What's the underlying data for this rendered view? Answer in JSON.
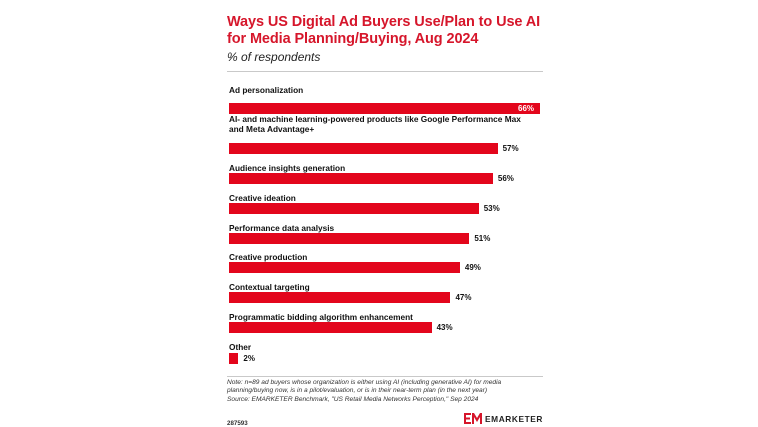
{
  "header": {
    "title": "Ways US Digital Ad Buyers Use/Plan to Use AI for Media Planning/Buying, Aug 2024",
    "subtitle": "% of respondents"
  },
  "chart_data": {
    "type": "bar",
    "orientation": "horizontal",
    "unit": "%",
    "xlim": [
      0,
      66
    ],
    "categories": [
      "Ad personalization",
      "AI- and machine learning-powered products like Google Performance Max and Meta Advantage+",
      "Audience insights generation",
      "Creative ideation",
      "Performance data analysis",
      "Creative production",
      "Contextual targeting",
      "Programmatic bidding algorithm enhancement",
      "Other"
    ],
    "values": [
      66,
      57,
      56,
      53,
      51,
      49,
      47,
      43,
      2
    ],
    "value_labels": [
      "66%",
      "57%",
      "56%",
      "53%",
      "51%",
      "49%",
      "47%",
      "43%",
      "2%"
    ],
    "bar_color": "#e3061c",
    "grid": false
  },
  "footer": {
    "note": "Note: n=89 ad buyers whose organization is either using AI (including generative AI) for media planning/buying now, is in a pilot/evaluation, or is in their near-term plan (in the next year)",
    "source": "Source: EMARKETER Benchmark, \"US Retail Media Networks Perception,\" Sep 2024",
    "chart_id": "287593",
    "brand": "EMARKETER"
  },
  "colors": {
    "accent": "#d6162b",
    "bar": "#e3061c"
  },
  "icons": {
    "logo": "emarketer-logo-icon"
  }
}
